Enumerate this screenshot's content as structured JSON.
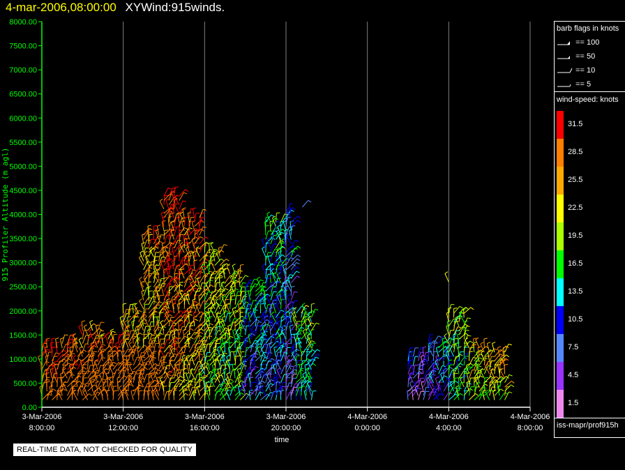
{
  "title": {
    "date": "4-mar-2006,08:00:00",
    "name": "XYWind:915winds."
  },
  "chart_data": {
    "type": "scatter",
    "xlabel": "time",
    "ylabel": "915 Profiler Altitude (m agl)",
    "ylim": [
      0,
      8000
    ],
    "xlim_hours": [
      0,
      24
    ],
    "x_tick_labels": [
      [
        "3-Mar-2006",
        "8:00:00"
      ],
      [
        "3-Mar-2006",
        "12:00:00"
      ],
      [
        "3-Mar-2006",
        "16:00:00"
      ],
      [
        "3-Mar-2006",
        "20:00:00"
      ],
      [
        "4-Mar-2006",
        "0:00:00"
      ],
      [
        "4-Mar-2006",
        "4:00:00"
      ],
      [
        "4-Mar-2006",
        "8:00:00"
      ]
    ],
    "y_ticks": [
      0,
      500,
      1000,
      1500,
      2000,
      2500,
      3000,
      3500,
      4000,
      4500,
      5000,
      5500,
      6000,
      6500,
      7000,
      7500,
      8000
    ],
    "y_tick_labels": [
      "0.00",
      "500.00",
      "1000.00",
      "1500.00",
      "2000.00",
      "2500.00",
      "3000.00",
      "3500.00",
      "4000.00",
      "4500.00",
      "5000.00",
      "5500.00",
      "6000.00",
      "6500.00",
      "7000.00",
      "7500.00",
      "8000.00"
    ],
    "grid": "vertical",
    "legend_placement": "right",
    "wind_profile": [
      {
        "t": 0.0,
        "top": 1300,
        "speed": 30
      },
      {
        "t": 1.0,
        "top": 1400,
        "speed": 29
      },
      {
        "t": 2.0,
        "top": 1600,
        "speed": 28
      },
      {
        "t": 3.0,
        "top": 1500,
        "speed": 28
      },
      {
        "t": 4.0,
        "top": 2000,
        "speed": 25
      },
      {
        "t": 5.0,
        "top": 3600,
        "speed": 27
      },
      {
        "t": 6.0,
        "top": 4400,
        "speed": 31
      },
      {
        "t": 7.0,
        "top": 4000,
        "speed": 29
      },
      {
        "t": 8.0,
        "top": 3300,
        "speed": 23
      },
      {
        "t": 9.0,
        "top": 2800,
        "speed": 22
      },
      {
        "t": 10.0,
        "top": 2500,
        "speed": 14
      },
      {
        "t": 11.0,
        "top": 3900,
        "speed": 15
      },
      {
        "t": 12.0,
        "top": 4100,
        "speed": 12
      },
      {
        "t": 12.5,
        "top": 2000,
        "speed": 18
      },
      {
        "t": 18.0,
        "top": 1100,
        "speed": 9
      },
      {
        "t": 19.0,
        "top": 1400,
        "speed": 12
      },
      {
        "t": 20.0,
        "top": 2000,
        "speed": 20
      },
      {
        "t": 21.0,
        "top": 1300,
        "speed": 24
      },
      {
        "t": 22.0,
        "top": 1200,
        "speed": 26
      }
    ],
    "isolated_barbs": [
      {
        "t": 20.0,
        "alt": 2600,
        "speed": 23
      },
      {
        "t": 12.8,
        "alt": 4150,
        "speed": 6
      }
    ],
    "barb_flags_title": "barb flags in knots",
    "barb_flags": [
      "== 100",
      "== 50",
      "== 10",
      "== 5"
    ],
    "colorbar_title": "wind-speed: knots",
    "colorbar": [
      {
        "label": "31.5",
        "color": "#ff0000"
      },
      {
        "label": "28.5",
        "color": "#ff7f00"
      },
      {
        "label": "25.5",
        "color": "#ffaa00"
      },
      {
        "label": "22.5",
        "color": "#ffff00"
      },
      {
        "label": "19.5",
        "color": "#aaff00"
      },
      {
        "label": "16.5",
        "color": "#00ff00"
      },
      {
        "label": "13.5",
        "color": "#00ffff"
      },
      {
        "label": "10.5",
        "color": "#0000ff"
      },
      {
        "label": "7.5",
        "color": "#5588ff"
      },
      {
        "label": "4.5",
        "color": "#9933ff"
      },
      {
        "label": "1.5",
        "color": "#ee88ee"
      }
    ]
  },
  "source": "iss-mapr/prof915h",
  "disclaimer": "REAL-TIME DATA, NOT CHECKED FOR QUALITY"
}
